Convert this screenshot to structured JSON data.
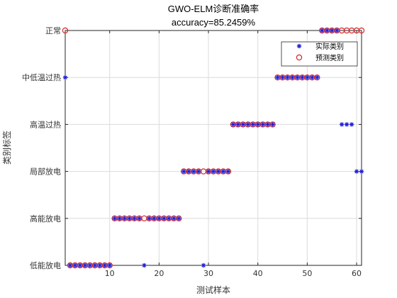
{
  "chart_data": {
    "type": "scatter",
    "title": "GWO-ELM诊断准确率",
    "subtitle": "accuracy=85.2459%",
    "xlabel": "测试样本",
    "ylabel": "类别标签",
    "xlim": [
      1,
      61
    ],
    "ylim": [
      1,
      6
    ],
    "xticks": [
      10,
      20,
      30,
      40,
      50,
      60
    ],
    "yticks": [
      1,
      2,
      3,
      4,
      5,
      6
    ],
    "ytick_labels": [
      "低能放电",
      "高能放电",
      "局部放电",
      "高温过热",
      "中低温过热",
      "正常"
    ],
    "grid": true,
    "legend_position": "top-right",
    "colors": {
      "actual": "#1f1fd6",
      "predicted": "#d62728"
    },
    "series": [
      {
        "name": "实际类别",
        "marker": "star",
        "x": [
          1,
          2,
          3,
          4,
          5,
          6,
          7,
          8,
          9,
          10,
          11,
          12,
          13,
          14,
          15,
          16,
          17,
          18,
          19,
          20,
          21,
          22,
          23,
          24,
          25,
          26,
          27,
          28,
          29,
          30,
          31,
          32,
          33,
          34,
          35,
          36,
          37,
          38,
          39,
          40,
          41,
          42,
          43,
          44,
          45,
          46,
          47,
          48,
          49,
          50,
          51,
          52,
          53,
          54,
          55,
          56,
          57,
          58,
          59,
          60,
          61
        ],
        "values": [
          5,
          1,
          1,
          1,
          1,
          1,
          1,
          1,
          1,
          1,
          2,
          2,
          2,
          2,
          2,
          2,
          1,
          2,
          2,
          2,
          2,
          2,
          2,
          2,
          3,
          3,
          3,
          3,
          1,
          3,
          3,
          3,
          3,
          3,
          4,
          4,
          4,
          4,
          4,
          4,
          4,
          4,
          4,
          5,
          5,
          5,
          5,
          5,
          5,
          5,
          5,
          5,
          6,
          6,
          6,
          6,
          4,
          4,
          4,
          3,
          3
        ]
      },
      {
        "name": "预测类别",
        "marker": "circle",
        "x": [
          1,
          2,
          3,
          4,
          5,
          6,
          7,
          8,
          9,
          10,
          11,
          12,
          13,
          14,
          15,
          16,
          17,
          18,
          19,
          20,
          21,
          22,
          23,
          24,
          25,
          26,
          27,
          28,
          29,
          30,
          31,
          32,
          33,
          34,
          35,
          36,
          37,
          38,
          39,
          40,
          41,
          42,
          43,
          44,
          45,
          46,
          47,
          48,
          49,
          50,
          51,
          52,
          53,
          54,
          55,
          56,
          57,
          58,
          59,
          60,
          61
        ],
        "values": [
          6,
          1,
          1,
          1,
          1,
          1,
          1,
          1,
          1,
          1,
          2,
          2,
          2,
          2,
          2,
          2,
          2,
          2,
          2,
          2,
          2,
          2,
          2,
          2,
          3,
          3,
          3,
          3,
          3,
          3,
          3,
          3,
          3,
          3,
          4,
          4,
          4,
          4,
          4,
          4,
          4,
          4,
          4,
          5,
          5,
          5,
          5,
          5,
          5,
          5,
          5,
          5,
          6,
          6,
          6,
          6,
          6,
          6,
          6,
          6,
          6
        ]
      }
    ]
  }
}
